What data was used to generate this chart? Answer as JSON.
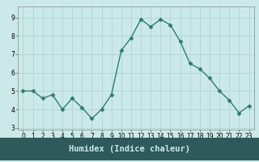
{
  "x": [
    0,
    1,
    2,
    3,
    4,
    5,
    6,
    7,
    8,
    9,
    10,
    11,
    12,
    13,
    14,
    15,
    16,
    17,
    18,
    19,
    20,
    21,
    22,
    23
  ],
  "y": [
    5.0,
    5.0,
    4.6,
    4.8,
    4.0,
    4.6,
    4.1,
    3.5,
    4.0,
    4.8,
    7.2,
    7.9,
    8.9,
    8.5,
    8.9,
    8.6,
    7.7,
    6.5,
    6.2,
    5.7,
    5.0,
    4.5,
    3.8,
    4.2
  ],
  "line_color": "#2E7D6E",
  "marker": "D",
  "marker_size": 2.5,
  "linewidth": 1.0,
  "bg_color": "#CBE9E9",
  "grid_color": "#B0D4D4",
  "xlabel": "Humidex (Indice chaleur)",
  "xlabel_fontsize": 7.5,
  "yticks": [
    3,
    4,
    5,
    6,
    7,
    8,
    9
  ],
  "xticks": [
    0,
    1,
    2,
    3,
    4,
    5,
    6,
    7,
    8,
    9,
    10,
    11,
    12,
    13,
    14,
    15,
    16,
    17,
    18,
    19,
    20,
    21,
    22,
    23
  ],
  "ylim": [
    2.9,
    9.6
  ],
  "xlim": [
    -0.5,
    23.5
  ],
  "tick_fontsize": 5.5,
  "axis_bg": "#CBE9E9",
  "bottom_bar_color": "#2E5A5A",
  "bottom_bar_text_color": "#CBE9E9",
  "spine_color": "#888888"
}
